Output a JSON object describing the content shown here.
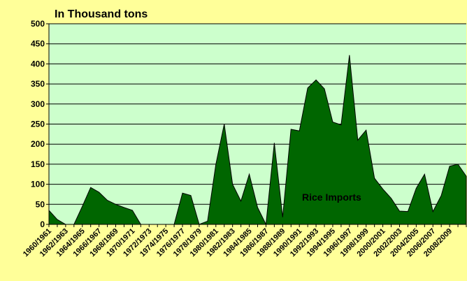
{
  "chart_data": {
    "type": "area",
    "title": "In Thousand tons",
    "annotation": "Rice Imports",
    "categories": [
      "1960/1961",
      null,
      "1962/1963",
      null,
      "1964/1965",
      null,
      "1966/1967",
      null,
      "1968/1969",
      null,
      "1970/1971",
      null,
      "1972/1973",
      null,
      "1974/1975",
      null,
      "1976/1977",
      null,
      "1978/1979",
      null,
      "1980/1981",
      null,
      "1982/1983",
      null,
      "1984/1985",
      null,
      "1986/1987",
      null,
      "1988/1989",
      null,
      "1990/1991",
      null,
      "1992/1993",
      null,
      "1994/1995",
      null,
      "1996/1997",
      null,
      "1998/1999",
      null,
      "2000/2001",
      null,
      "2002/2003",
      null,
      "2004/2005",
      null,
      "2006/2007",
      null,
      "2008/2009",
      null,
      null
    ],
    "values": [
      35,
      12,
      0,
      0,
      45,
      92,
      80,
      60,
      50,
      42,
      35,
      0,
      0,
      0,
      0,
      0,
      78,
      72,
      0,
      8,
      150,
      250,
      100,
      58,
      125,
      42,
      0,
      203,
      18,
      237,
      233,
      340,
      360,
      338,
      255,
      248,
      422,
      210,
      235,
      115,
      88,
      65,
      33,
      32,
      90,
      125,
      32,
      72,
      145,
      150,
      120
    ],
    "color": "#006600",
    "ylim": [
      0,
      500
    ],
    "yticks": [
      0,
      50,
      100,
      150,
      200,
      250,
      300,
      350,
      400,
      450,
      500
    ],
    "grid": true
  }
}
